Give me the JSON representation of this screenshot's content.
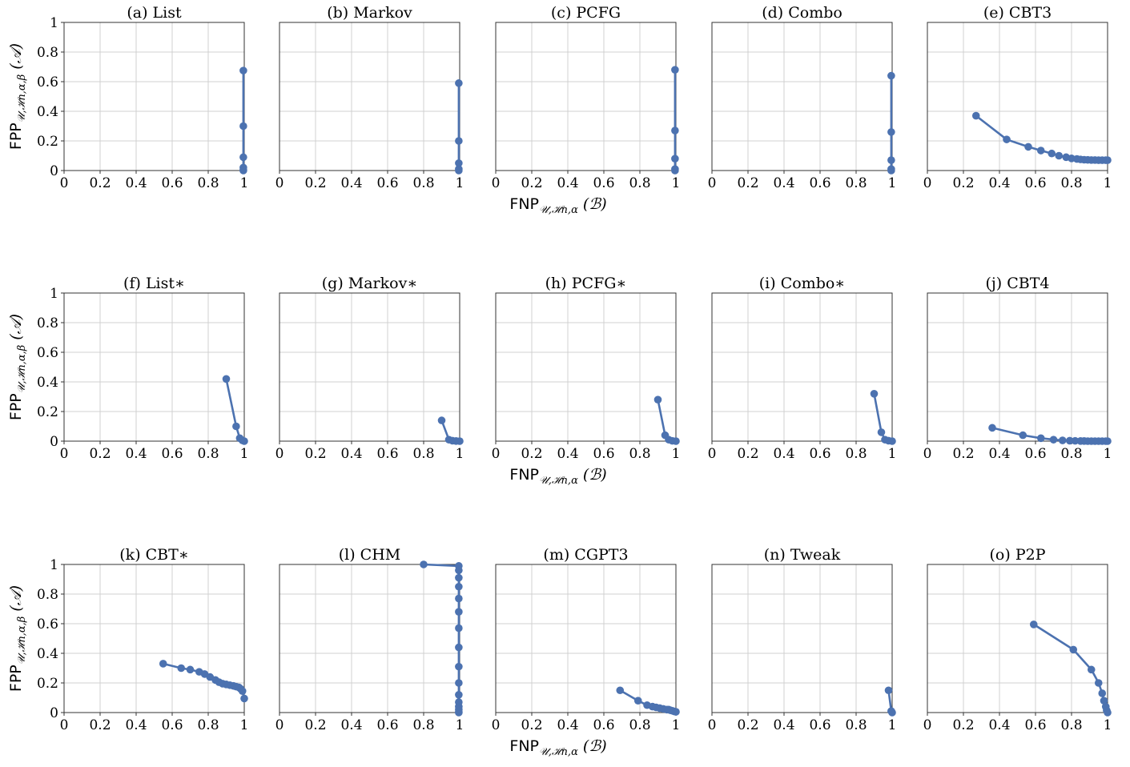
{
  "colors": {
    "series": "#4c72b0",
    "grid": "#d0d0d0",
    "frame": "#333333"
  },
  "labels": {
    "y_main": "FPP",
    "y_sub": "𝒰,ℋn,α,β",
    "y_paren": "(𝒜)",
    "x_main": "FNP",
    "x_sub": "𝒰,ℋn,α",
    "x_paren": "(ℬ)"
  },
  "chart_data": [
    {
      "title": "(a) List",
      "type": "line",
      "xlim": [
        0,
        1
      ],
      "ylim": [
        0,
        1
      ],
      "grid": true,
      "xticks": [
        "0",
        "0.2",
        "0.4",
        "0.6",
        "0.8",
        "1"
      ],
      "yticks": [
        "0",
        "0.2",
        "0.4",
        "0.6",
        "0.8",
        "1"
      ],
      "x": [
        0.995,
        0.995,
        0.995,
        0.995,
        0.995,
        0.995
      ],
      "y": [
        0.675,
        0.3,
        0.09,
        0.02,
        0.005,
        0
      ]
    },
    {
      "title": "(b) Markov",
      "type": "line",
      "xlim": [
        0,
        1
      ],
      "ylim": [
        0,
        1
      ],
      "grid": true,
      "xticks": [
        "0",
        "0.2",
        "0.4",
        "0.6",
        "0.8",
        "1"
      ],
      "yticks": [],
      "x": [
        0.995,
        0.995,
        0.995,
        0.995,
        0.995
      ],
      "y": [
        0.59,
        0.2,
        0.05,
        0.01,
        0
      ]
    },
    {
      "title": "(c) PCFG",
      "type": "line",
      "xlim": [
        0,
        1
      ],
      "ylim": [
        0,
        1
      ],
      "grid": true,
      "xticks": [
        "0",
        "0.2",
        "0.4",
        "0.6",
        "0.8",
        "1"
      ],
      "yticks": [],
      "x": [
        0.995,
        0.995,
        0.995,
        0.995,
        0.995
      ],
      "y": [
        0.68,
        0.27,
        0.08,
        0.01,
        0
      ]
    },
    {
      "title": "(d) Combo",
      "type": "line",
      "xlim": [
        0,
        1
      ],
      "ylim": [
        0,
        1
      ],
      "grid": true,
      "xticks": [
        "0",
        "0.2",
        "0.4",
        "0.6",
        "0.8",
        "1"
      ],
      "yticks": [],
      "x": [
        0.995,
        0.995,
        0.995,
        0.995,
        0.995
      ],
      "y": [
        0.64,
        0.26,
        0.07,
        0.01,
        0
      ]
    },
    {
      "title": "(e) CBT3",
      "type": "line",
      "xlim": [
        0,
        1
      ],
      "ylim": [
        0,
        1
      ],
      "grid": true,
      "xticks": [
        "0",
        "0.2",
        "0.4",
        "0.6",
        "0.8",
        "1"
      ],
      "yticks": [],
      "x": [
        0.27,
        0.44,
        0.56,
        0.63,
        0.69,
        0.73,
        0.77,
        0.8,
        0.83,
        0.85,
        0.87,
        0.89,
        0.91,
        0.93,
        0.95,
        0.97,
        0.99,
        1.0
      ],
      "y": [
        0.37,
        0.21,
        0.16,
        0.135,
        0.115,
        0.1,
        0.09,
        0.082,
        0.078,
        0.075,
        0.073,
        0.072,
        0.071,
        0.071,
        0.07,
        0.07,
        0.07,
        0.07
      ]
    },
    {
      "title": "(f) List∗",
      "type": "line",
      "xlim": [
        0,
        1
      ],
      "ylim": [
        0,
        1
      ],
      "grid": true,
      "xticks": [
        "0",
        "0.2",
        "0.4",
        "0.6",
        "0.8",
        "1"
      ],
      "yticks": [
        "0",
        "0.2",
        "0.4",
        "0.6",
        "0.8",
        "1"
      ],
      "x": [
        0.9,
        0.955,
        0.975,
        0.99,
        1.0
      ],
      "y": [
        0.42,
        0.1,
        0.02,
        0.005,
        0
      ]
    },
    {
      "title": "(g) Markov∗",
      "type": "line",
      "xlim": [
        0,
        1
      ],
      "ylim": [
        0,
        1
      ],
      "grid": true,
      "xticks": [
        "0",
        "0.2",
        "0.4",
        "0.6",
        "0.8",
        "1"
      ],
      "yticks": [],
      "x": [
        0.9,
        0.94,
        0.96,
        0.98,
        1.0
      ],
      "y": [
        0.14,
        0.01,
        0.003,
        0.001,
        0
      ]
    },
    {
      "title": "(h) PCFG∗",
      "type": "line",
      "xlim": [
        0,
        1
      ],
      "ylim": [
        0,
        1
      ],
      "grid": true,
      "xticks": [
        "0",
        "0.2",
        "0.4",
        "0.6",
        "0.8",
        "1"
      ],
      "yticks": [],
      "x": [
        0.9,
        0.94,
        0.96,
        0.98,
        1.0
      ],
      "y": [
        0.28,
        0.04,
        0.01,
        0.002,
        0
      ]
    },
    {
      "title": "(i) Combo∗",
      "type": "line",
      "xlim": [
        0,
        1
      ],
      "ylim": [
        0,
        1
      ],
      "grid": true,
      "xticks": [
        "0",
        "0.2",
        "0.4",
        "0.6",
        "0.8",
        "1"
      ],
      "yticks": [],
      "x": [
        0.9,
        0.94,
        0.96,
        0.98,
        1.0
      ],
      "y": [
        0.32,
        0.06,
        0.01,
        0.003,
        0
      ]
    },
    {
      "title": "(j) CBT4",
      "type": "line",
      "xlim": [
        0,
        1
      ],
      "ylim": [
        0,
        1
      ],
      "grid": true,
      "xticks": [
        "0",
        "0.2",
        "0.4",
        "0.6",
        "0.8",
        "1"
      ],
      "yticks": [],
      "x": [
        0.36,
        0.53,
        0.63,
        0.7,
        0.75,
        0.79,
        0.82,
        0.85,
        0.87,
        0.89,
        0.91,
        0.93,
        0.95,
        0.97,
        0.99,
        1.0
      ],
      "y": [
        0.09,
        0.04,
        0.02,
        0.01,
        0.005,
        0.003,
        0.002,
        0.001,
        0.001,
        0,
        0,
        0,
        0,
        0,
        0,
        0
      ]
    },
    {
      "title": "(k) CBT∗",
      "type": "line",
      "xlim": [
        0,
        1
      ],
      "ylim": [
        0,
        1
      ],
      "grid": true,
      "xticks": [
        "0",
        "0.2",
        "0.4",
        "0.6",
        "0.8",
        "1"
      ],
      "yticks": [
        "0",
        "0.2",
        "0.4",
        "0.6",
        "0.8",
        "1"
      ],
      "x": [
        0.55,
        0.65,
        0.7,
        0.75,
        0.78,
        0.81,
        0.84,
        0.86,
        0.88,
        0.9,
        0.92,
        0.94,
        0.955,
        0.97,
        0.98,
        0.99,
        1.0
      ],
      "y": [
        0.33,
        0.3,
        0.29,
        0.275,
        0.26,
        0.24,
        0.22,
        0.205,
        0.195,
        0.19,
        0.185,
        0.18,
        0.175,
        0.17,
        0.16,
        0.145,
        0.095
      ]
    },
    {
      "title": "(l) CHM",
      "type": "line",
      "xlim": [
        0,
        1
      ],
      "ylim": [
        0,
        1
      ],
      "grid": true,
      "xticks": [
        "0",
        "0.2",
        "0.4",
        "0.6",
        "0.8",
        "1"
      ],
      "yticks": [],
      "x": [
        0.8,
        0.995,
        0.995,
        0.995,
        0.995,
        0.995,
        0.995,
        0.995,
        0.995,
        0.995,
        0.995,
        0.995,
        0.995,
        0.995,
        0.995,
        0.995,
        0.995
      ],
      "y": [
        1.0,
        0.99,
        0.96,
        0.91,
        0.85,
        0.77,
        0.68,
        0.57,
        0.44,
        0.31,
        0.2,
        0.12,
        0.07,
        0.04,
        0.02,
        0.005,
        0
      ]
    },
    {
      "title": "(m) CGPT3",
      "type": "line",
      "xlim": [
        0,
        1
      ],
      "ylim": [
        0,
        1
      ],
      "grid": true,
      "xticks": [
        "0",
        "0.2",
        "0.4",
        "0.6",
        "0.8",
        "1"
      ],
      "yticks": [],
      "x": [
        0.69,
        0.79,
        0.84,
        0.87,
        0.89,
        0.91,
        0.93,
        0.95,
        0.96,
        0.97,
        0.98,
        0.99,
        1.0
      ],
      "y": [
        0.15,
        0.08,
        0.05,
        0.04,
        0.035,
        0.03,
        0.025,
        0.02,
        0.02,
        0.015,
        0.012,
        0.008,
        0.005
      ]
    },
    {
      "title": "(n) Tweak",
      "type": "line",
      "xlim": [
        0,
        1
      ],
      "ylim": [
        0,
        1
      ],
      "grid": true,
      "xticks": [
        "0",
        "0.2",
        "0.4",
        "0.6",
        "0.8",
        "1"
      ],
      "yticks": [],
      "x": [
        0.98,
        0.995,
        1.0
      ],
      "y": [
        0.15,
        0.01,
        0
      ]
    },
    {
      "title": "(o) P2P",
      "type": "line",
      "xlim": [
        0,
        1
      ],
      "ylim": [
        0,
        1
      ],
      "grid": true,
      "xticks": [
        "0",
        "0.2",
        "0.4",
        "0.6",
        "0.8",
        "1"
      ],
      "yticks": [],
      "x": [
        0.59,
        0.81,
        0.91,
        0.95,
        0.97,
        0.98,
        0.99,
        0.995,
        1.0
      ],
      "y": [
        0.595,
        0.425,
        0.29,
        0.2,
        0.13,
        0.08,
        0.04,
        0.015,
        0
      ]
    }
  ]
}
